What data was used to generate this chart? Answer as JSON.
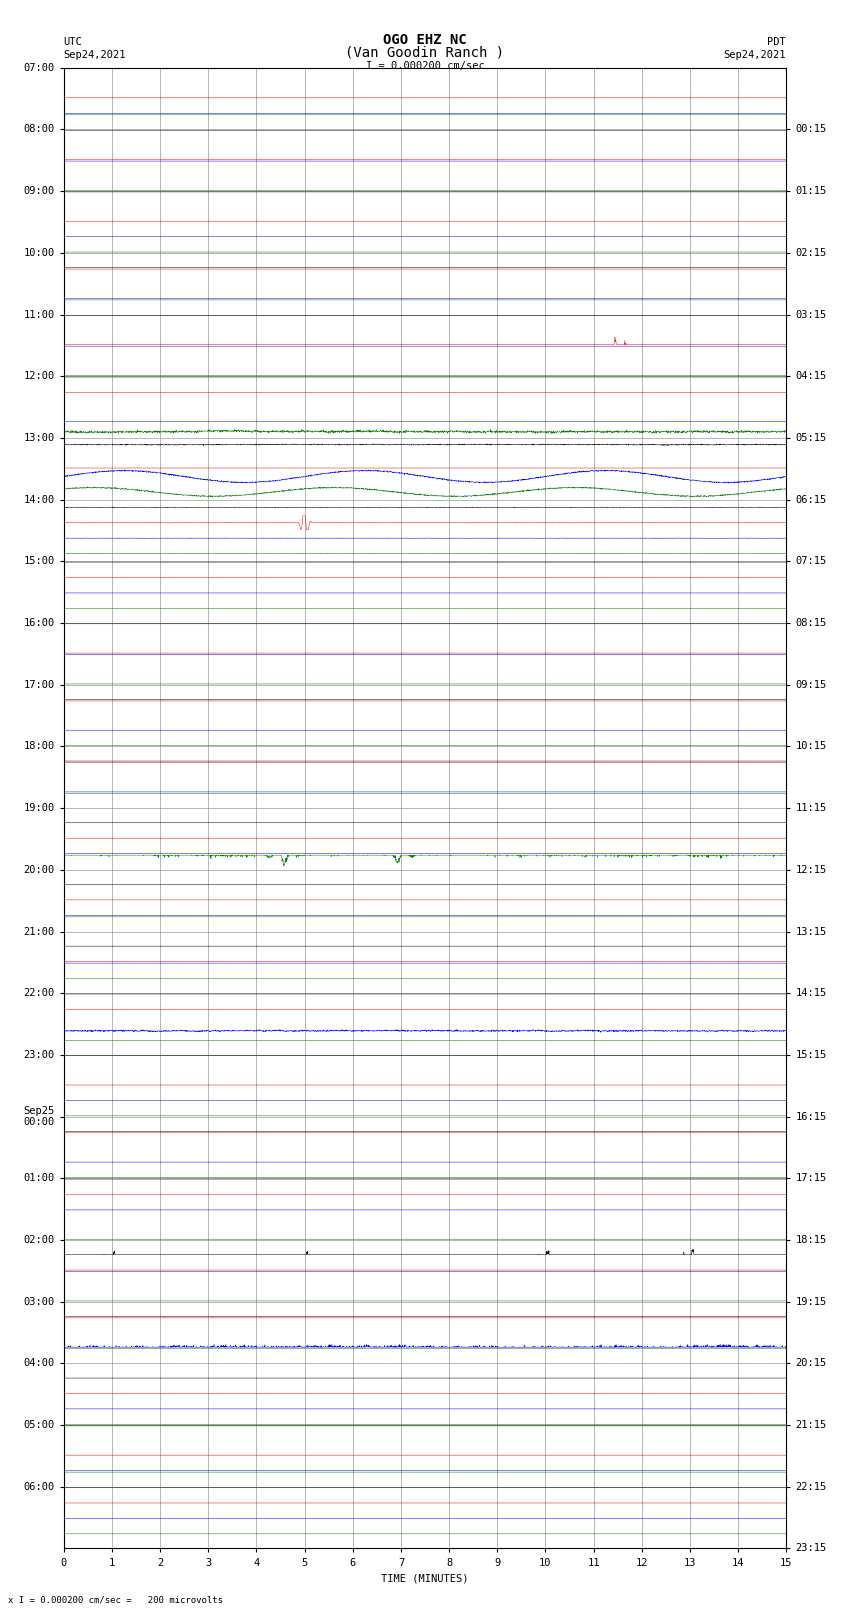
{
  "title_line1": "OGO EHZ NC",
  "title_line2": "(Van Goodin Ranch )",
  "scale_label": "I = 0.000200 cm/sec",
  "bottom_label": "x I = 0.000200 cm/sec =   200 microvolts",
  "xlabel": "TIME (MINUTES)",
  "utc_label": "UTC",
  "utc_date": "Sep24,2021",
  "pdt_label": "PDT",
  "pdt_date": "Sep24,2021",
  "left_times": [
    "07:00",
    "08:00",
    "09:00",
    "10:00",
    "11:00",
    "12:00",
    "13:00",
    "14:00",
    "15:00",
    "16:00",
    "17:00",
    "18:00",
    "19:00",
    "20:00",
    "21:00",
    "22:00",
    "23:00",
    "Sep25\n00:00",
    "01:00",
    "02:00",
    "03:00",
    "04:00",
    "05:00",
    "06:00"
  ],
  "right_times": [
    "00:15",
    "01:15",
    "02:15",
    "03:15",
    "04:15",
    "05:15",
    "06:15",
    "07:15",
    "08:15",
    "09:15",
    "10:15",
    "11:15",
    "12:15",
    "13:15",
    "14:15",
    "15:15",
    "16:15",
    "17:15",
    "18:15",
    "19:15",
    "20:15",
    "21:15",
    "22:15",
    "23:15"
  ],
  "colors": [
    "black",
    "red",
    "blue",
    "green"
  ],
  "bg_color": "#ffffff",
  "grid_color": "#999999",
  "n_rows": 24,
  "traces_per_row": 4,
  "x_ticks": [
    0,
    1,
    2,
    3,
    4,
    5,
    6,
    7,
    8,
    9,
    10,
    11,
    12,
    13,
    14,
    15
  ],
  "x_min": 0,
  "x_max": 15,
  "title_fontsize": 10,
  "label_fontsize": 7.5,
  "tick_fontsize": 7.5
}
